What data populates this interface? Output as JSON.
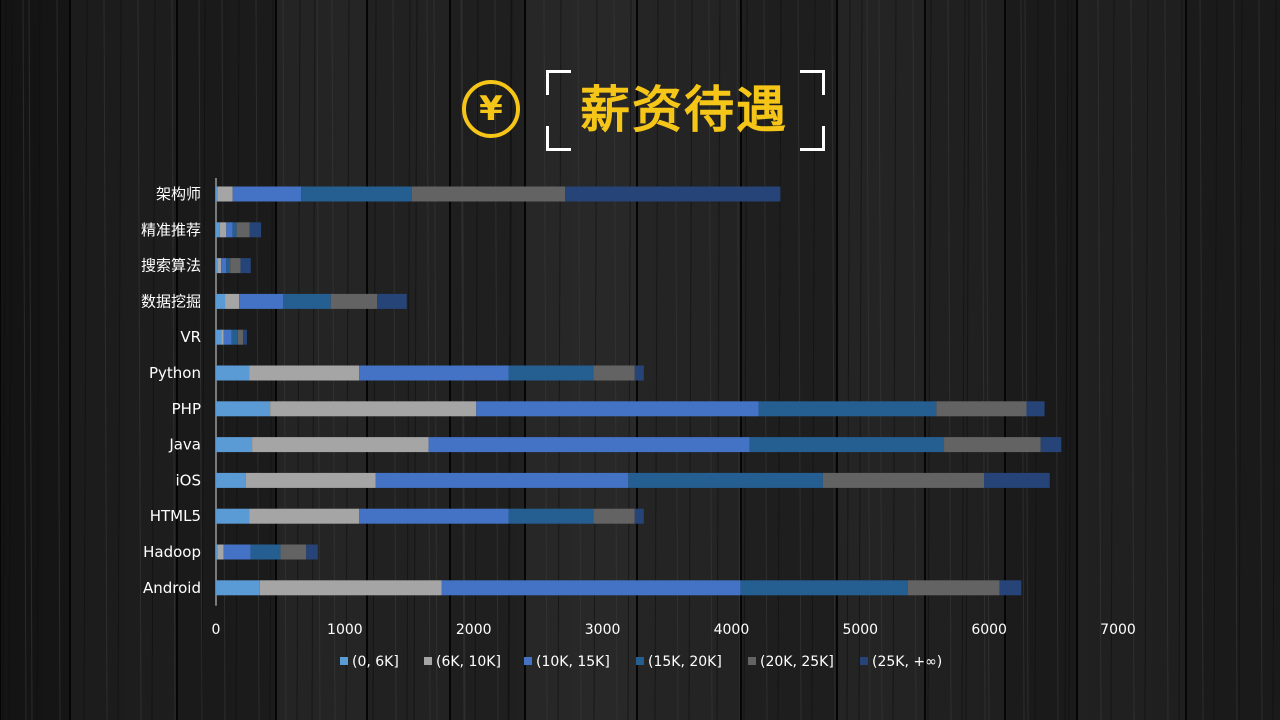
{
  "title": "薪资待遇",
  "icons": {
    "title_icon": "yen-circle-icon",
    "title_icon_glyph": "¥"
  },
  "colors": {
    "title": "#f5c518",
    "series": [
      "#5b9bd5",
      "#a5a5a5",
      "#4472c4",
      "#255e91",
      "#636363",
      "#264478"
    ]
  },
  "chart_data": {
    "type": "bar",
    "orientation": "horizontal",
    "stacked": true,
    "categories": [
      "架构师",
      "精准推荐",
      "搜索算法",
      "数据挖掘",
      "VR",
      "Python",
      "PHP",
      "Java",
      "iOS",
      "HTML5",
      "Hadoop",
      "Android"
    ],
    "series": [
      {
        "name": "(0, 6K]",
        "values": [
          10,
          30,
          10,
          70,
          40,
          260,
          420,
          280,
          230,
          260,
          10,
          340
        ]
      },
      {
        "name": "(6K, 10K]",
        "values": [
          120,
          50,
          30,
          110,
          20,
          850,
          1600,
          1370,
          1010,
          850,
          50,
          1410
        ]
      },
      {
        "name": "(10K, 15K]",
        "values": [
          530,
          50,
          40,
          340,
          60,
          1160,
          2190,
          2490,
          1960,
          1160,
          210,
          2320
        ]
      },
      {
        "name": "(15K, 20K]",
        "values": [
          860,
          30,
          30,
          370,
          50,
          660,
          1380,
          1510,
          1510,
          660,
          230,
          1300
        ]
      },
      {
        "name": "(20K, 25K]",
        "values": [
          1190,
          100,
          80,
          360,
          40,
          320,
          700,
          750,
          1250,
          320,
          200,
          710
        ]
      },
      {
        "name": "(25K, +∞)",
        "values": [
          1670,
          90,
          80,
          230,
          30,
          70,
          140,
          160,
          510,
          70,
          90,
          170
        ]
      }
    ],
    "xlim": [
      0,
      7000
    ],
    "xticks": [
      0,
      1000,
      2000,
      3000,
      4000,
      5000,
      6000,
      7000
    ],
    "grid": false,
    "legend": "bottom"
  }
}
